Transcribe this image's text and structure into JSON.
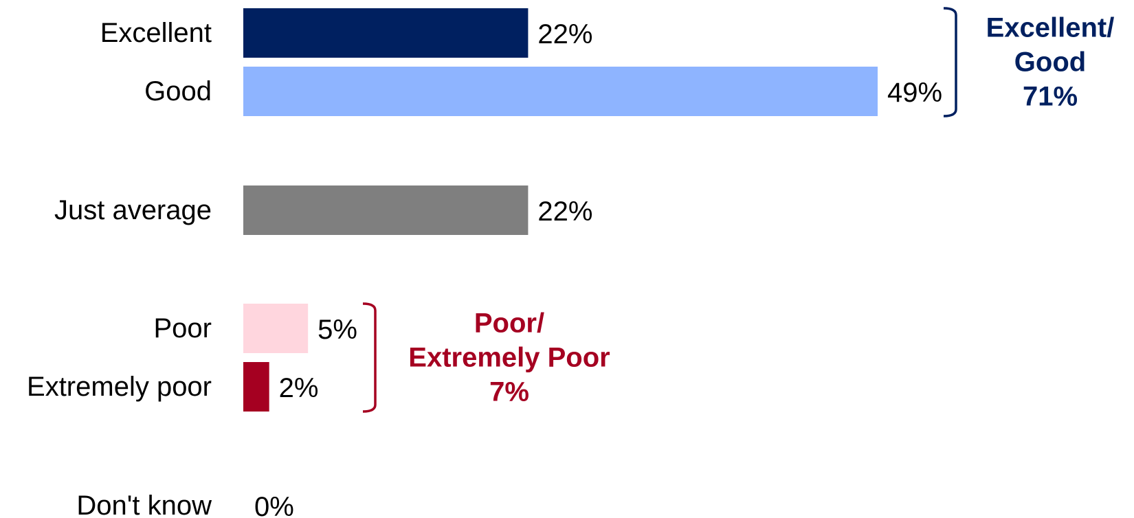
{
  "chart_data": {
    "type": "bar",
    "orientation": "horizontal",
    "categories": [
      "Excellent",
      "Good",
      "Just average",
      "Poor",
      "Extremely poor",
      "Don't know"
    ],
    "values": [
      22,
      49,
      22,
      5,
      2,
      0
    ],
    "value_labels": [
      "22%",
      "49%",
      "22%",
      "5%",
      "2%",
      "0%"
    ],
    "colors": [
      "#002060",
      "#8EB4FF",
      "#7F7F7F",
      "#FFD6DE",
      "#A50021",
      "#FFFFFF"
    ],
    "xlim": [
      0,
      55
    ],
    "grid": false,
    "legend": "none",
    "groups": [
      {
        "members": [
          "Excellent",
          "Good"
        ],
        "label_line1": "Excellent/",
        "label_line2": "Good",
        "value_label": "71%",
        "value": 71,
        "color": "#002060"
      },
      {
        "members": [
          "Poor",
          "Extremely poor"
        ],
        "label_line1": "Poor/",
        "label_line2": "Extremely Poor",
        "value_label": "7%",
        "value": 7,
        "color": "#A50021"
      }
    ]
  }
}
